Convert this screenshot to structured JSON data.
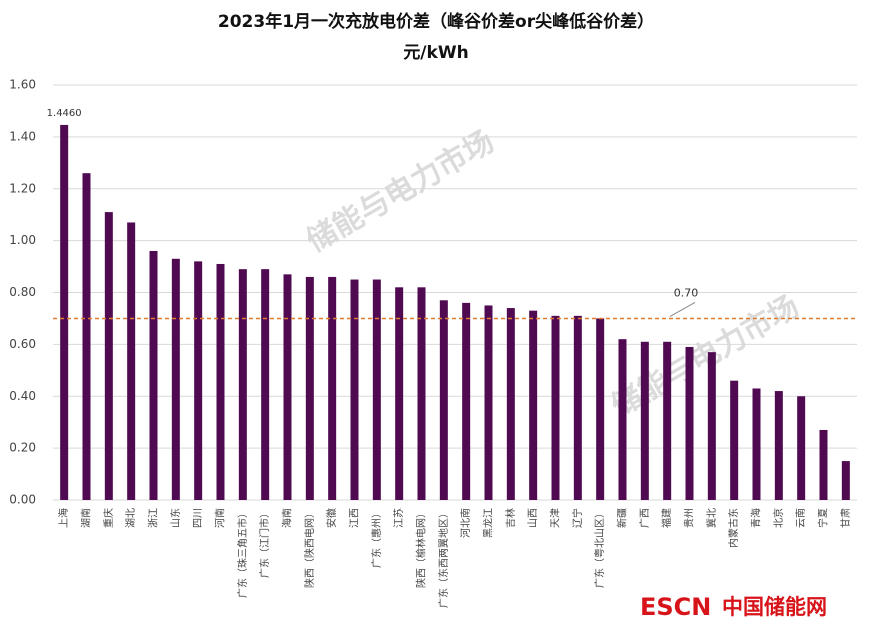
{
  "chart_data": {
    "type": "bar",
    "title": "2023年1月一次充放电价差（峰谷价差or尖峰低谷价差）",
    "subtitle": "元/kWh",
    "categories": [
      "上海",
      "湖南",
      "重庆",
      "湖北",
      "浙江",
      "山东",
      "四川",
      "河南",
      "广东（珠三角五市）",
      "广东（江门市）",
      "海南",
      "陕西（陕西电网）",
      "安徽",
      "江西",
      "广东（惠州）",
      "江苏",
      "陕西（榆林电网）",
      "广东（东西两翼地区）",
      "河北南",
      "黑龙江",
      "吉林",
      "山西",
      "天津",
      "辽宁",
      "广东（粤北山区）",
      "新疆",
      "广西",
      "福建",
      "贵州",
      "冀北",
      "内蒙古东",
      "青海",
      "北京",
      "云南",
      "宁夏",
      "甘肃"
    ],
    "values": [
      1.446,
      1.26,
      1.11,
      1.07,
      0.96,
      0.93,
      0.92,
      0.91,
      0.89,
      0.89,
      0.87,
      0.86,
      0.86,
      0.85,
      0.85,
      0.82,
      0.82,
      0.77,
      0.76,
      0.75,
      0.74,
      0.73,
      0.71,
      0.71,
      0.7,
      0.62,
      0.61,
      0.61,
      0.59,
      0.57,
      0.46,
      0.43,
      0.42,
      0.4,
      0.27,
      0.15
    ],
    "value_labels": [
      "1.4460",
      null,
      null,
      null,
      null,
      null,
      null,
      null,
      null,
      null,
      null,
      null,
      null,
      null,
      null,
      null,
      null,
      null,
      null,
      null,
      null,
      null,
      null,
      null,
      null,
      null,
      null,
      null,
      null,
      null,
      null,
      null,
      null,
      null,
      null,
      null
    ],
    "color": "#4f0a52",
    "ylim": [
      0,
      1.6
    ],
    "yticks": [
      {
        "value": 0,
        "label": "0.00"
      },
      {
        "value": 0.2,
        "label": "0.20"
      },
      {
        "value": 0.4,
        "label": "0.40"
      },
      {
        "value": 0.6,
        "label": "0.60"
      },
      {
        "value": 0.8,
        "label": "0.80"
      },
      {
        "value": 1.0,
        "label": "1.00"
      },
      {
        "value": 1.2,
        "label": "1.20"
      },
      {
        "value": 1.4,
        "label": "1.40"
      },
      {
        "value": 1.6,
        "label": "1.60"
      }
    ],
    "grid": true,
    "reference_line": {
      "value": 0.7,
      "label": "0.70",
      "color": "#e07a2e"
    },
    "watermark": "储能与电力市场",
    "logo": [
      "ESCN",
      "中国储能网"
    ]
  }
}
